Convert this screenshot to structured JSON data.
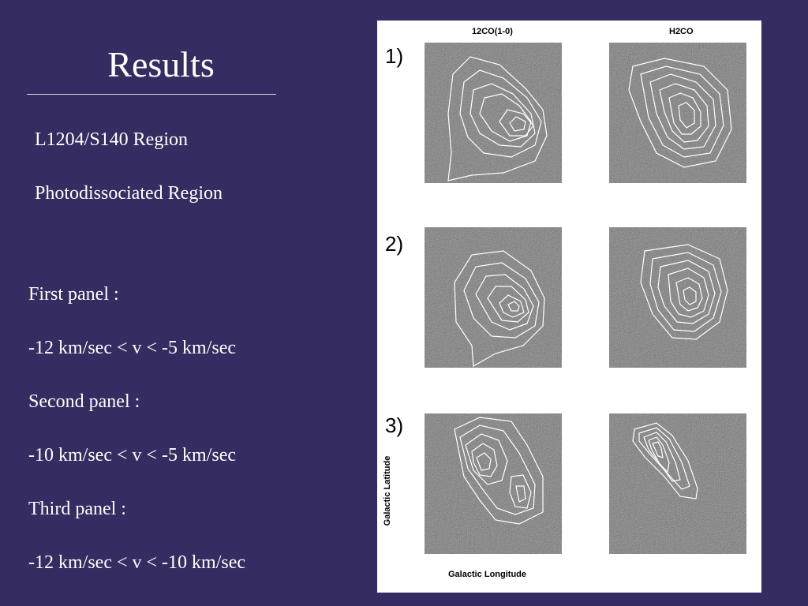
{
  "slide": {
    "title": "Results",
    "region": "L1204/S140 Region",
    "pdr": "Photodissociated Region",
    "panels_text": [
      {
        "label": "First panel :",
        "range": "-12 km/sec < v < -5 km/sec"
      },
      {
        "label": "Second panel :",
        "range": "-10 km/sec < v < -5 km/sec"
      },
      {
        "label": "Third panel :",
        "range": "-12 km/sec < v < -10 km/sec"
      }
    ]
  },
  "figure": {
    "col_left": "12CO(1-0)",
    "col_right": "H2CO",
    "panel_numbers": [
      "1)",
      "2)",
      "3)"
    ],
    "y_axis": "Galactic Latitude",
    "x_axis": "Galactic Longitude"
  },
  "colors": {
    "background": "#352d62",
    "text": "#ffffff",
    "figure_bg": "#ffffff",
    "contour": "#ffffff"
  }
}
